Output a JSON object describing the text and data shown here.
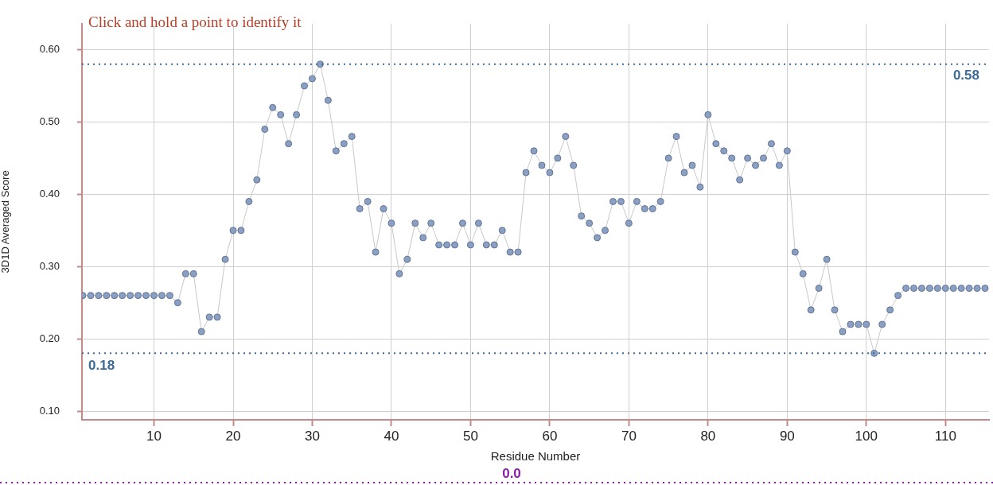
{
  "chart_data": {
    "type": "line",
    "annotations": [
      "Click and hold a point to identify it"
    ],
    "xlabel": "Residue Number",
    "ylabel": "3D1D Averaged Score",
    "x": [
      1,
      2,
      3,
      4,
      5,
      6,
      7,
      8,
      9,
      10,
      11,
      12,
      13,
      14,
      15,
      16,
      17,
      18,
      19,
      20,
      21,
      22,
      23,
      24,
      25,
      26,
      27,
      28,
      29,
      30,
      31,
      32,
      33,
      34,
      35,
      36,
      37,
      38,
      39,
      40,
      41,
      42,
      43,
      44,
      45,
      46,
      47,
      48,
      49,
      50,
      51,
      52,
      53,
      54,
      55,
      56,
      57,
      58,
      59,
      60,
      61,
      62,
      63,
      64,
      65,
      66,
      67,
      68,
      69,
      70,
      71,
      72,
      73,
      74,
      75,
      76,
      77,
      78,
      79,
      80,
      81,
      82,
      83,
      84,
      85,
      86,
      87,
      88,
      89,
      90,
      91,
      92,
      93,
      94,
      95,
      96,
      97,
      98,
      99,
      100,
      101,
      102,
      103,
      104,
      105,
      106,
      107,
      108,
      109,
      110,
      111,
      112,
      113,
      114,
      115
    ],
    "series": [
      {
        "color": "#8a9fc2",
        "values": [
          0.26,
          0.26,
          0.26,
          0.26,
          0.26,
          0.26,
          0.26,
          0.26,
          0.26,
          0.26,
          0.26,
          0.26,
          0.25,
          0.29,
          0.29,
          0.21,
          0.23,
          0.23,
          0.31,
          0.35,
          0.35,
          0.39,
          0.42,
          0.49,
          0.52,
          0.51,
          0.47,
          0.51,
          0.55,
          0.56,
          0.58,
          0.53,
          0.46,
          0.47,
          0.48,
          0.38,
          0.39,
          0.32,
          0.38,
          0.36,
          0.29,
          0.31,
          0.36,
          0.34,
          0.36,
          0.33,
          0.33,
          0.33,
          0.36,
          0.33,
          0.36,
          0.33,
          0.33,
          0.35,
          0.32,
          0.32,
          0.43,
          0.46,
          0.44,
          0.43,
          0.45,
          0.48,
          0.44,
          0.37,
          0.36,
          0.34,
          0.35,
          0.39,
          0.39,
          0.36,
          0.39,
          0.38,
          0.38,
          0.39,
          0.45,
          0.48,
          0.43,
          0.44,
          0.41,
          0.51,
          0.47,
          0.46,
          0.45,
          0.42,
          0.45,
          0.44,
          0.45,
          0.47,
          0.44,
          0.46,
          0.32,
          0.29,
          0.24,
          0.27,
          0.31,
          0.24,
          0.21,
          0.22,
          0.22,
          0.22,
          0.18,
          0.22,
          0.24,
          0.26,
          0.27,
          0.27,
          0.27,
          0.27,
          0.27,
          0.27,
          0.27,
          0.27,
          0.27,
          0.27,
          0.27
        ]
      }
    ],
    "xlim": [
      0.9,
      115.5
    ],
    "xticks": [
      10,
      20,
      30,
      40,
      50,
      60,
      70,
      80,
      90,
      100,
      110
    ],
    "ylim": [
      0.088,
      0.636
    ],
    "yticks": [
      {
        "value": 0.1,
        "label": "0.10"
      },
      {
        "value": 0.2,
        "label": "0.20"
      },
      {
        "value": 0.3,
        "label": "0.30"
      },
      {
        "value": 0.4,
        "label": "0.40"
      },
      {
        "value": 0.5,
        "label": "0.50"
      },
      {
        "value": 0.6,
        "label": "0.60"
      }
    ],
    "grid": true,
    "marker": "circle",
    "line_style": "solid",
    "legend": false,
    "ref_lines": [
      {
        "axis": "y",
        "value": 0.58,
        "label": "0.58",
        "color": "#3d6b99",
        "line_style": "dotted"
      },
      {
        "axis": "y",
        "value": 0.18,
        "label": "0.18",
        "color": "#3d6b99",
        "line_style": "dotted"
      },
      {
        "axis": "y",
        "value": 0,
        "label": "0.0",
        "color": "#8b1fa8",
        "line_style": "dotted"
      }
    ]
  }
}
